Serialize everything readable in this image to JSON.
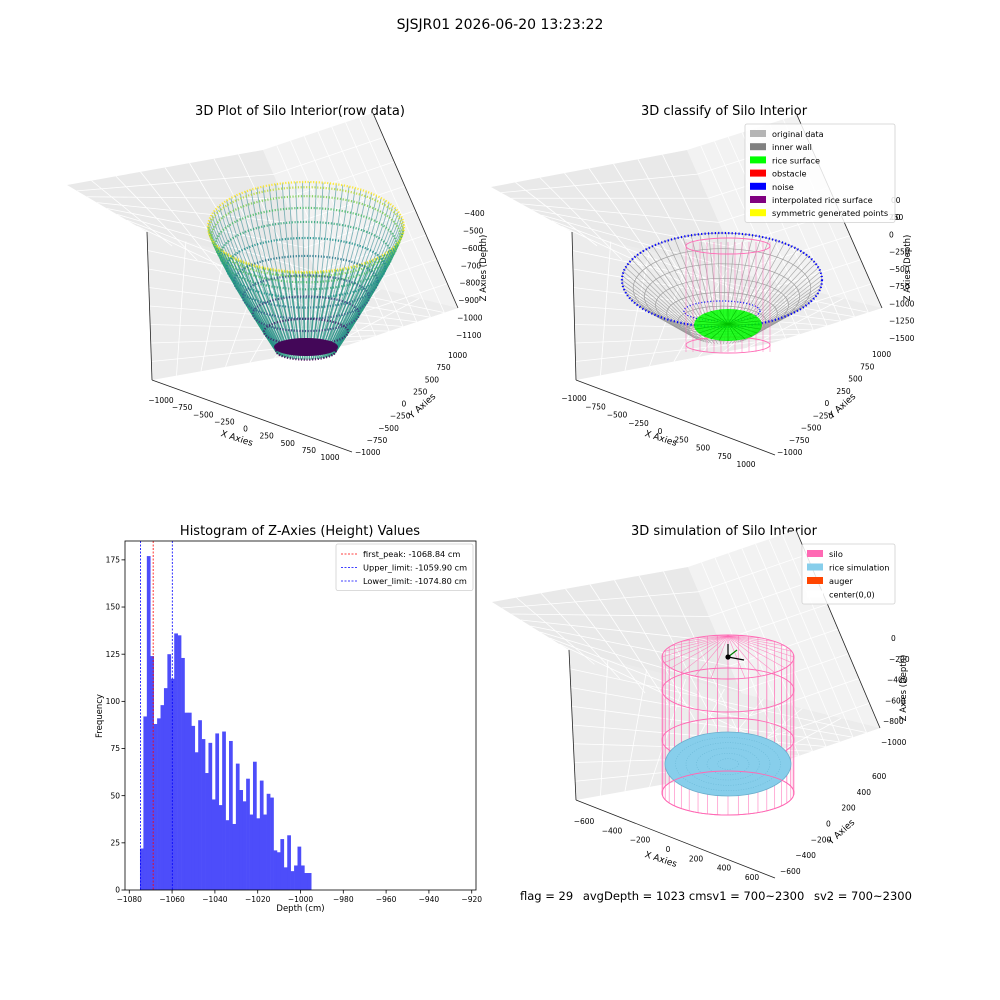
{
  "suptitle": "SJSJR01 2026-06-20 13:23:22",
  "footer": {
    "flag": "flag = 29",
    "avg_depth": "avgDepth = 1023 cm",
    "sv1": "sv1 = 700~2300",
    "sv2": "sv2 = 700~2300"
  },
  "chart_data": [
    {
      "type": "scatter",
      "title": "3D Plot of Silo Interior(row data)",
      "xlabel": "X Axies",
      "ylabel": "Y Axies",
      "zlabel": "Z Axies (Depth)",
      "x_ticks": [
        "−1000",
        "−750",
        "−500",
        "−250",
        "0",
        "250",
        "500",
        "750",
        "1000"
      ],
      "y_ticks": [
        "−1000",
        "−750",
        "−500",
        "−250",
        "0",
        "250",
        "500",
        "750",
        "1000"
      ],
      "z_ticks": [
        "−400",
        "−500",
        "−600",
        "−700",
        "−800",
        "−900",
        "−1000",
        "−1100"
      ],
      "zlim": [
        -1100,
        -400
      ],
      "colormap": "viridis"
    },
    {
      "type": "scatter",
      "title": "3D classify of Silo Interior",
      "xlabel": "X Axies",
      "ylabel": "Y Axies",
      "zlabel": "Z Axies (Depth)",
      "x_ticks": [
        "−1000",
        "−750",
        "−500",
        "−250",
        "0",
        "250",
        "500",
        "750",
        "1000"
      ],
      "y_ticks": [
        "−1000",
        "−750",
        "−500",
        "−250",
        "0",
        "250",
        "500",
        "750",
        "1000"
      ],
      "z_ticks": [
        "250",
        "0",
        "−250",
        "−500",
        "−750",
        "−1000",
        "−1250",
        "−1500"
      ],
      "z_ticks_partial": [
        "00",
        "00"
      ],
      "legend_position": "upper right",
      "legend": [
        {
          "label": "original data",
          "color": "#b4b4b4"
        },
        {
          "label": "inner wall",
          "color": "#808080"
        },
        {
          "label": "rice surface",
          "color": "#00ff00"
        },
        {
          "label": "obstacle",
          "color": "#ff0000"
        },
        {
          "label": "noise",
          "color": "#0000ff"
        },
        {
          "label": "interpolated rice surface",
          "color": "#800080"
        },
        {
          "label": "symmetric generated points",
          "color": "#ffff00"
        }
      ]
    },
    {
      "type": "bar",
      "title": "Histogram of Z-Axies (Height) Values",
      "xlabel": "Depth (cm)",
      "ylabel": "Frequency",
      "xlim": [
        -1082,
        -918
      ],
      "ylim": [
        0,
        185
      ],
      "x_ticks": [
        -1080,
        -1060,
        -1040,
        -1020,
        -1000,
        -980,
        -960,
        -940,
        -920
      ],
      "x_tick_labels": [
        "−1080",
        "−1060",
        "−1040",
        "−1020",
        "−1000",
        "−980",
        "−960",
        "−940",
        "−920"
      ],
      "y_ticks": [
        0,
        25,
        50,
        75,
        100,
        125,
        150,
        175
      ],
      "bin_start": -1075,
      "bin_width": 1.6,
      "values": [
        22,
        92,
        177,
        124,
        88,
        91,
        98,
        107,
        125,
        112,
        136,
        135,
        123,
        94,
        94,
        87,
        73,
        90,
        80,
        62,
        78,
        48,
        83,
        45,
        84,
        37,
        79,
        35,
        67,
        53,
        47,
        59,
        40,
        68,
        38,
        58,
        40,
        51,
        49,
        21,
        20,
        27,
        12,
        29,
        10,
        13,
        23,
        13,
        9,
        9
      ],
      "bar_color": "#4d4dfa",
      "vlines": [
        {
          "label": "first_peak: -1068.84 cm",
          "x": -1068.84,
          "color": "#ff0000"
        },
        {
          "label": "Upper_limit: -1059.90 cm",
          "x": -1059.9,
          "color": "#0000ff"
        },
        {
          "label": "Lower_limit: -1074.80 cm",
          "x": -1074.8,
          "color": "#0000ff"
        }
      ],
      "legend_position": "upper right"
    },
    {
      "type": "scatter",
      "title": "3D simulation of Silo Interior",
      "xlabel": "X Axies",
      "ylabel": "Y Axies",
      "zlabel": "Z Axies (Depth)",
      "x_ticks": [
        "−600",
        "−400",
        "−200",
        "0",
        "200",
        "400",
        "600"
      ],
      "y_ticks": [
        "−600",
        "−400",
        "−200",
        "0",
        "200",
        "400",
        "600"
      ],
      "z_ticks": [
        "0",
        "−200",
        "−400",
        "−600",
        "−800",
        "−1000"
      ],
      "legend_position": "upper right",
      "legend": [
        {
          "label": "silo",
          "color": "#ff69b4"
        },
        {
          "label": "rice simulation",
          "color": "#87ceeb"
        },
        {
          "label": "auger",
          "color": "#ff4500"
        },
        {
          "label": "center(0,0)",
          "color": "#ffffff"
        }
      ]
    }
  ]
}
